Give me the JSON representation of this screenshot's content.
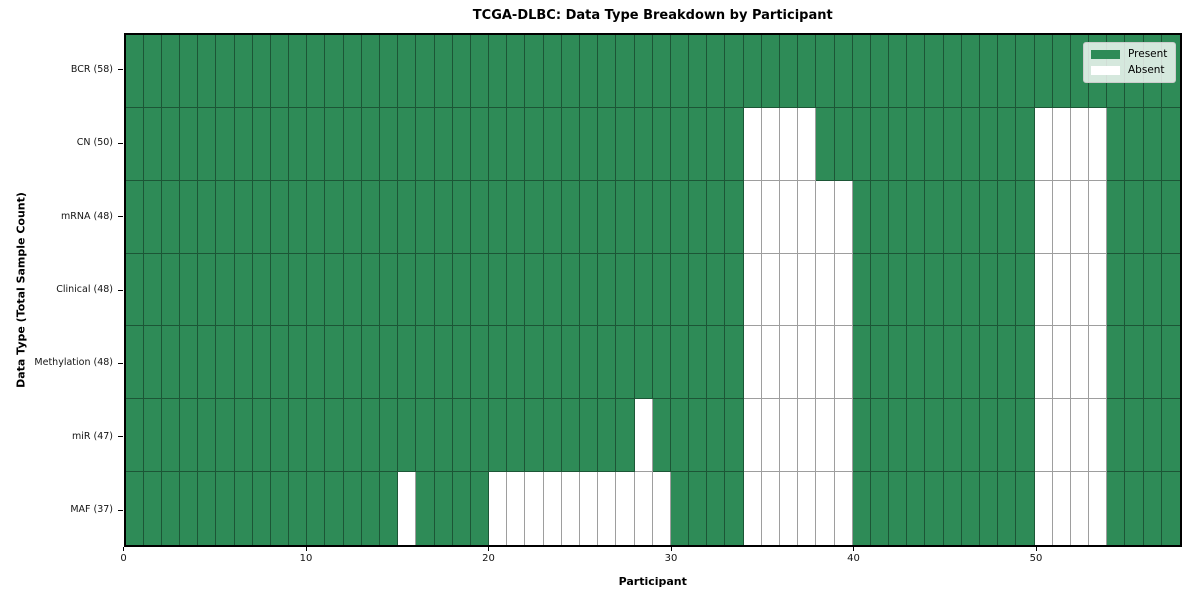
{
  "figure": {
    "title": "TCGA-DLBC: Data Type Breakdown by Participant",
    "xlabel": "Participant",
    "ylabel": "Data Type (Total Sample Count)"
  },
  "legend": {
    "present_label": "Present",
    "absent_label": "Absent"
  },
  "colors": {
    "present": "#2e8b57",
    "absent": "#ffffff",
    "grid_line": "rgba(0,0,0,0.38)",
    "plot_border": "#000000",
    "legend_bg": "rgba(255,255,255,0.8)",
    "legend_border": "#cccccc"
  },
  "chart_data": {
    "type": "heatmap",
    "title": "TCGA-DLBC: Data Type Breakdown by Participant",
    "xlabel": "Participant",
    "ylabel": "Data Type (Total Sample Count)",
    "x_ticks": [
      0,
      10,
      20,
      30,
      40,
      50
    ],
    "n_participants": 58,
    "x_range": [
      0,
      58
    ],
    "grid": true,
    "legend_position": "upper right",
    "legend": [
      {
        "label": "Present",
        "color": "#2e8b57"
      },
      {
        "label": "Absent",
        "color": "#ffffff"
      }
    ],
    "rows": [
      {
        "label": "BCR (58)",
        "data_type": "BCR",
        "present_count": 58,
        "absent_participants": []
      },
      {
        "label": "CN (50)",
        "data_type": "CN",
        "present_count": 50,
        "absent_participants": [
          34,
          35,
          36,
          37,
          50,
          51,
          52,
          53
        ]
      },
      {
        "label": "mRNA (48)",
        "data_type": "mRNA",
        "present_count": 48,
        "absent_participants": [
          34,
          35,
          36,
          37,
          38,
          39,
          50,
          51,
          52,
          53
        ]
      },
      {
        "label": "Clinical (48)",
        "data_type": "Clinical",
        "present_count": 48,
        "absent_participants": [
          34,
          35,
          36,
          37,
          38,
          39,
          50,
          51,
          52,
          53
        ]
      },
      {
        "label": "Methylation (48)",
        "data_type": "Methylation",
        "present_count": 48,
        "absent_participants": [
          34,
          35,
          36,
          37,
          38,
          39,
          50,
          51,
          52,
          53
        ]
      },
      {
        "label": "miR (47)",
        "data_type": "miR",
        "present_count": 47,
        "absent_participants": [
          28,
          34,
          35,
          36,
          37,
          38,
          39,
          50,
          51,
          52,
          53
        ]
      },
      {
        "label": "MAF (37)",
        "data_type": "MAF",
        "present_count": 37,
        "absent_participants": [
          15,
          20,
          21,
          22,
          23,
          24,
          25,
          26,
          27,
          28,
          29,
          34,
          35,
          36,
          37,
          38,
          39,
          50,
          51,
          52,
          53
        ]
      }
    ]
  }
}
